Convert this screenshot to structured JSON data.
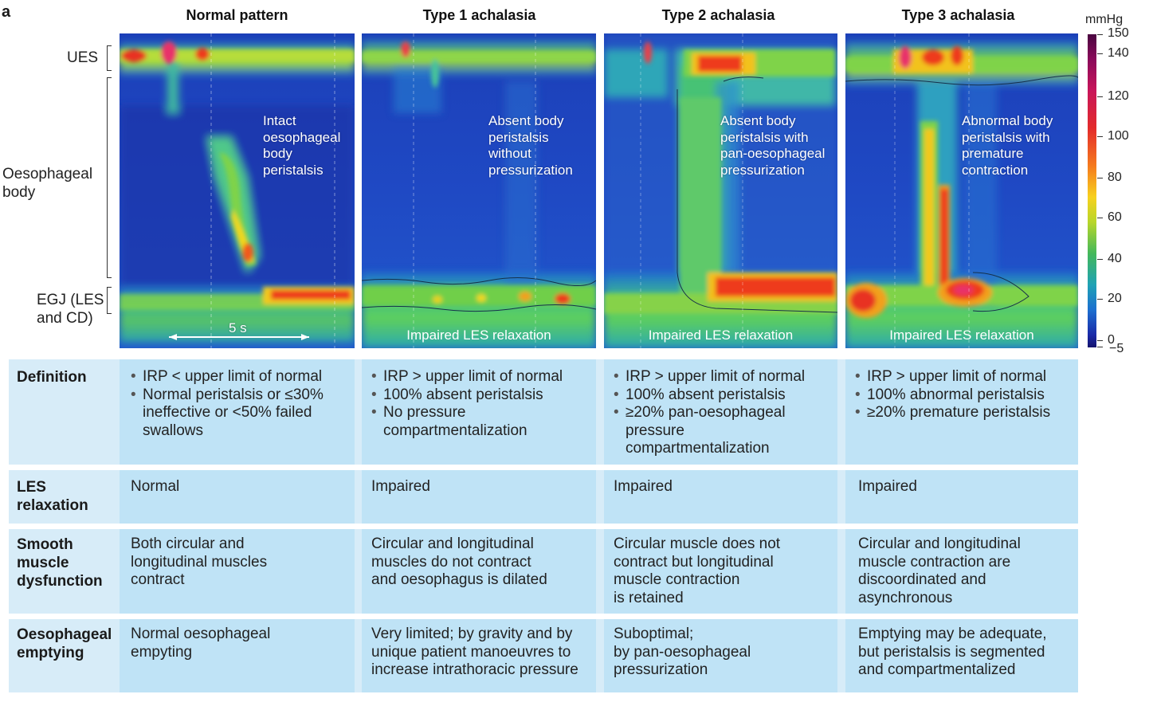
{
  "panel_letter": "a",
  "columns": [
    {
      "title": "Normal pattern",
      "note": [
        "Intact",
        "oesophageal",
        "body",
        "peristalsis"
      ],
      "bottom_label": "",
      "time_label": "5 s"
    },
    {
      "title": "Type 1 achalasia",
      "note": [
        "Absent body",
        "peristalsis",
        "without",
        "pressurization"
      ],
      "bottom_label": "Impaired LES relaxation"
    },
    {
      "title": "Type 2 achalasia",
      "note": [
        "Absent body",
        "peristalsis  with",
        "pan-oesophageal",
        "pressurization"
      ],
      "bottom_label": "Impaired LES relaxation"
    },
    {
      "title": "Type 3 achalasia",
      "note": [
        "Abnormal body",
        "peristalsis with",
        "premature",
        "contraction"
      ],
      "bottom_label": "Impaired LES relaxation"
    }
  ],
  "row_labels": {
    "ues": "UES",
    "body_1": "Oesophageal",
    "body_2": "body",
    "egj_1": "EGJ (LES",
    "egj_2": "and CD)"
  },
  "scale": {
    "unit": "mmHg",
    "ticks": [
      "150",
      "140",
      "120",
      "100",
      "80",
      "60",
      "40",
      "20",
      "0",
      "−5"
    ]
  },
  "table": {
    "definition": {
      "header": "Definition",
      "cells": [
        [
          "IRP < upper limit of normal",
          "Normal peristalsis or ≤30% ineffective or <50% failed swallows"
        ],
        [
          "IRP > upper limit of normal",
          "100% absent peristalsis",
          "No pressure compartmentalization"
        ],
        [
          "IRP > upper limit of normal",
          "100% absent peristalsis",
          "≥20% pan-oesophageal pressure compartmentalization"
        ],
        [
          "IRP > upper limit of normal",
          "100% abnormal peristalsis",
          "≥20% premature peristalsis"
        ]
      ]
    },
    "les": {
      "header_1": "LES",
      "header_2": "relaxation",
      "cells": [
        "Normal",
        "Impaired",
        "Impaired",
        "Impaired"
      ]
    },
    "smooth": {
      "header_1": "Smooth",
      "header_2": "muscle",
      "header_3": "dysfunction",
      "cells": [
        [
          "Both circular and",
          "longitudinal muscles",
          "contract"
        ],
        [
          "Circular and longitudinal",
          "muscles do not contract",
          "and oesophagus is dilated"
        ],
        [
          "Circular muscle does not",
          "contract but longitudinal",
          "muscle contraction",
          "is retained"
        ],
        [
          "Circular and longitudinal",
          "muscle contraction are",
          "discoordinated and",
          "asynchronous"
        ]
      ]
    },
    "emptying": {
      "header_1": "Oesophageal",
      "header_2": "emptying",
      "cells": [
        [
          "Normal oesophageal",
          "empyting"
        ],
        [
          "Very limited; by gravity and by",
          "unique patient manoeuvres to",
          "increase intrathoracic pressure"
        ],
        [
          "Suboptimal;",
          "by pan-oesophageal",
          "pressurization"
        ],
        [
          "Emptying may be adequate,",
          "but peristalsis is segmented",
          "and compartmentalized"
        ]
      ]
    }
  }
}
